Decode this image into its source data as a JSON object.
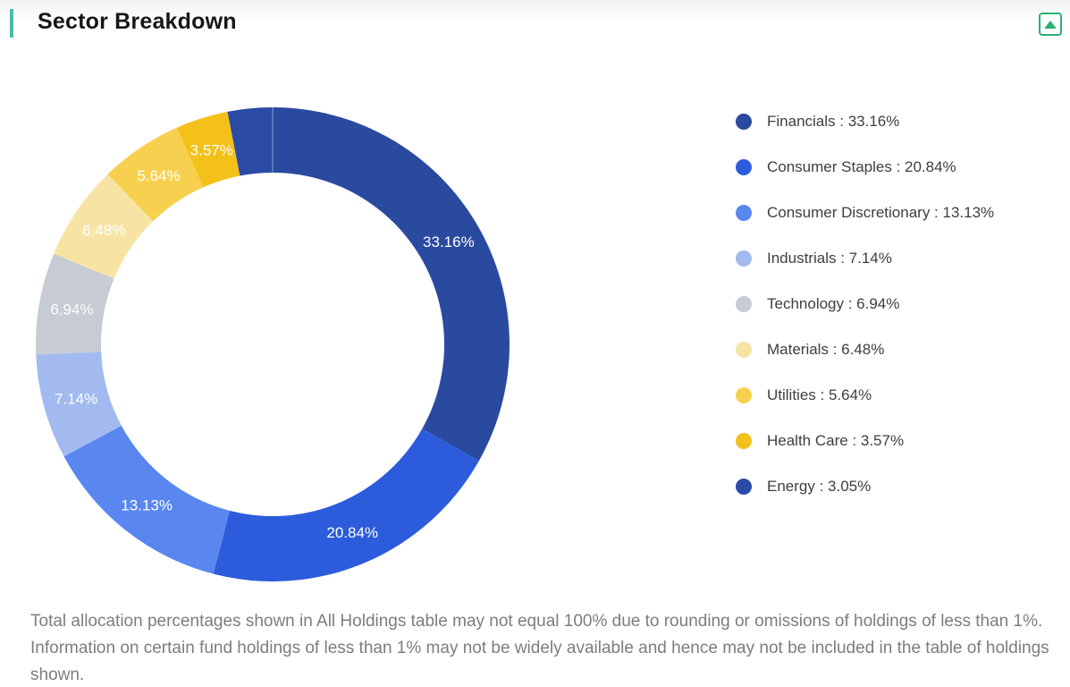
{
  "header": {
    "title": "Sector Breakdown",
    "accent_color": "#4cbba4",
    "collapse_button": {
      "icon": "up-triangle-icon",
      "color": "#2bb273"
    }
  },
  "chart_data": {
    "type": "pie",
    "subtype": "donut",
    "title": "Sector Breakdown",
    "unit": "%",
    "start_angle_deg": 0,
    "clockwise": true,
    "inner_radius_ratio": 0.725,
    "legend_position": "right",
    "slice_label_color": "#ffffff",
    "slices": [
      {
        "name": "Financials",
        "value": 33.16,
        "color": "#2a4aa0",
        "slice_label": "33.16%",
        "legend_label": "Financials : 33.16%"
      },
      {
        "name": "Consumer Staples",
        "value": 20.84,
        "color": "#2c5cdb",
        "slice_label": "20.84%",
        "legend_label": "Consumer Staples : 20.84%"
      },
      {
        "name": "Consumer Discretionary",
        "value": 13.13,
        "color": "#5a87ef",
        "slice_label": "13.13%",
        "legend_label": "Consumer Discretionary : 13.13%"
      },
      {
        "name": "Industrials",
        "value": 7.14,
        "color": "#a2baef",
        "slice_label": "7.14%",
        "legend_label": "Industrials : 7.14%"
      },
      {
        "name": "Technology",
        "value": 6.94,
        "color": "#c7cbd4",
        "slice_label": "6.94%",
        "legend_label": "Technology : 6.94%"
      },
      {
        "name": "Materials",
        "value": 6.48,
        "color": "#f7e4a5",
        "slice_label": "6.48%",
        "legend_label": "Materials : 6.48%"
      },
      {
        "name": "Utilities",
        "value": 5.64,
        "color": "#f8d04f",
        "slice_label": "5.64%",
        "legend_label": "Utilities : 5.64%"
      },
      {
        "name": "Health Care",
        "value": 3.57,
        "color": "#f4c11b",
        "slice_label": "3.57%",
        "legend_label": "Health Care : 3.57%"
      },
      {
        "name": "Energy",
        "value": 3.05,
        "color": "#2b4aa6",
        "slice_label": "",
        "legend_label": "Energy : 3.05%"
      }
    ]
  },
  "footnote": {
    "text": "Total allocation percentages shown in All Holdings table may not equal 100% due to rounding or omissions of holdings of less than 1%. Information on certain fund holdings of less than 1% may not be widely available and hence may not be included in the table of holdings shown."
  }
}
